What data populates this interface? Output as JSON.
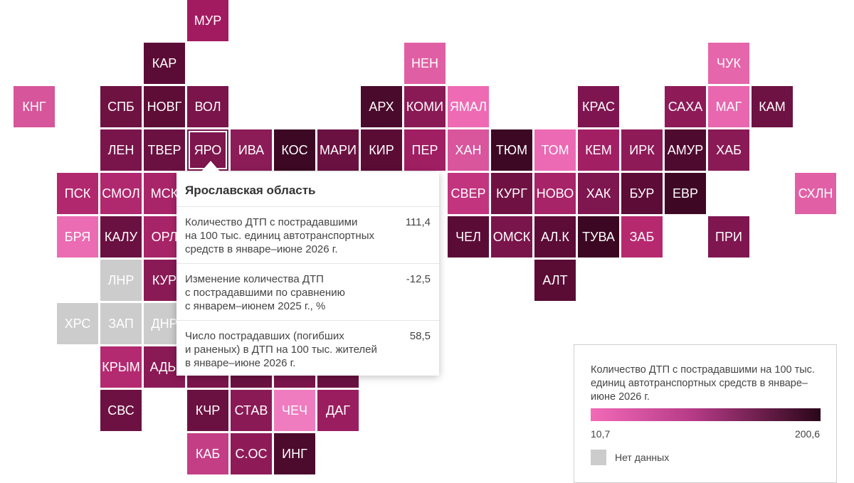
{
  "tiles": [
    {
      "code": "МУР",
      "color": "#a21b60"
    },
    {
      "code": "КАР",
      "color": "#5b0c36"
    },
    {
      "code": "НЕН",
      "color": "#e05fa4"
    },
    {
      "code": "ЧУК",
      "color": "#e566aa"
    },
    {
      "code": "КНГ",
      "color": "#d7559a"
    },
    {
      "code": "СПБ",
      "color": "#6e1242"
    },
    {
      "code": "НОВГ",
      "color": "#5e0d37"
    },
    {
      "code": "ВОЛ",
      "color": "#7a144a"
    },
    {
      "code": "АРХ",
      "color": "#4a0a2c"
    },
    {
      "code": "КОМИ",
      "color": "#8a1a55"
    },
    {
      "code": "ЯМАЛ",
      "color": "#ee6bb4"
    },
    {
      "code": "КРАС",
      "color": "#7e1550"
    },
    {
      "code": "САХА",
      "color": "#8e1b58"
    },
    {
      "code": "МАГ",
      "color": "#e867ae"
    },
    {
      "code": "КАМ",
      "color": "#6d1242"
    },
    {
      "code": "ЛЕН",
      "color": "#7a154b"
    },
    {
      "code": "ТВЕР",
      "color": "#6a1141"
    },
    {
      "code": "ЯРО",
      "color": "#7c164d"
    },
    {
      "code": "ИВА",
      "color": "#8b1c57"
    },
    {
      "code": "КОС",
      "color": "#3c0823"
    },
    {
      "code": "МАРИ",
      "color": "#6b1142"
    },
    {
      "code": "КИР",
      "color": "#5a0c35"
    },
    {
      "code": "ПЕР",
      "color": "#a01f63"
    },
    {
      "code": "ХАН",
      "color": "#d9559c"
    },
    {
      "code": "ТЮМ",
      "color": "#3d0824"
    },
    {
      "code": "ТОМ",
      "color": "#ec6ab3"
    },
    {
      "code": "КЕМ",
      "color": "#a21f64"
    },
    {
      "code": "ИРК",
      "color": "#8e1a58"
    },
    {
      "code": "АМУР",
      "color": "#4f0a2f"
    },
    {
      "code": "ХАБ",
      "color": "#8a1a55"
    },
    {
      "code": "ПСК",
      "color": "#b2286f"
    },
    {
      "code": "СМОЛ",
      "color": "#b0286e"
    },
    {
      "code": "МСК",
      "color": "#a92569"
    },
    {
      "code": "СВЕР",
      "color": "#c2347e"
    },
    {
      "code": "КУРГ",
      "color": "#6f1243"
    },
    {
      "code": "НОВО",
      "color": "#a72468"
    },
    {
      "code": "ХАК",
      "color": "#7e1650"
    },
    {
      "code": "БУР",
      "color": "#5c0c36"
    },
    {
      "code": "ЕВР",
      "color": "#3e0825"
    },
    {
      "code": "СХЛН",
      "color": "#e160a5"
    },
    {
      "code": "БРЯ",
      "color": "#eb6cb3"
    },
    {
      "code": "КАЛУ",
      "color": "#6a1141"
    },
    {
      "code": "ОРЛ",
      "color": "#a82468"
    },
    {
      "code": "ЧЕЛ",
      "color": "#5b0c36"
    },
    {
      "code": "ОМСК",
      "color": "#7a154b"
    },
    {
      "code": "АЛ.К",
      "color": "#5c0c36"
    },
    {
      "code": "ТУВА",
      "color": "#3b0722"
    },
    {
      "code": "ЗАБ",
      "color": "#b7296f"
    },
    {
      "code": "ПРИ",
      "color": "#7f1650"
    },
    {
      "code": "ЛНР",
      "color": "#cccccc"
    },
    {
      "code": "КУР",
      "color": "#8a1a55"
    },
    {
      "code": "АЛТ",
      "color": "#5a0c35"
    },
    {
      "code": "ХРС",
      "color": "#cccccc"
    },
    {
      "code": "ЗАП",
      "color": "#cccccc"
    },
    {
      "code": "ДНР",
      "color": "#cccccc"
    },
    {
      "code": "КРЫМ",
      "color": "#b42a70"
    },
    {
      "code": "АДЫ",
      "color": "#8a1a55"
    },
    {
      "code": "СВС",
      "color": "#6c1141"
    },
    {
      "code": "КЧР",
      "color": "#6a1141"
    },
    {
      "code": "СТАВ",
      "color": "#8a1a55"
    },
    {
      "code": "ЧЕЧ",
      "color": "#f07cc0"
    },
    {
      "code": "ДАГ",
      "color": "#9a1d5f"
    },
    {
      "code": "КАБ",
      "color": "#c43e85"
    },
    {
      "code": "С.ОС",
      "color": "#8e1b58"
    },
    {
      "code": "ИНГ",
      "color": "#4c0a2d"
    },
    {
      "code": "",
      "color": "#7a154b"
    },
    {
      "code": "",
      "color": "#6a1141"
    },
    {
      "code": "",
      "color": "#7a154b"
    },
    {
      "code": "",
      "color": "#6a1141"
    },
    {
      "code": "",
      "color": "#7a154b"
    },
    {
      "code": "",
      "color": "#7a154b"
    },
    {
      "code": "",
      "color": "#8a1a55"
    },
    {
      "code": "",
      "color": "#b0286e"
    },
    {
      "code": "",
      "color": "#8a1a55"
    }
  ],
  "selected_code": "ЯРО",
  "tooltip": {
    "title": "Ярославская область",
    "rows": [
      {
        "label": "Количество ДТП с пострадавшими\nна 100 тыс. единиц автотранспортных\nсредств в январе–июне 2026 г.",
        "value": "111,4"
      },
      {
        "label": "Изменение количества ДТП\nс пострадавшими по сравнению\nс январем–июнем 2025 г., %",
        "value": "-12,5"
      },
      {
        "label": "Число пострадавших (погибших\nи раненых) в ДТП на 100 тыс. жителей\nв январе–июне 2026 г.",
        "value": "58,5"
      }
    ]
  },
  "legend": {
    "title": "Количество ДТП с пострадавшими на 100 тыс. единиц автотранспортных средств в январе–июне 2026 г.",
    "min": "10,7",
    "max": "200,6",
    "color_min": "#f26ab8",
    "color_max": "#2a0618",
    "no_data_label": "Нет данных",
    "no_data_color": "#cccccc"
  }
}
